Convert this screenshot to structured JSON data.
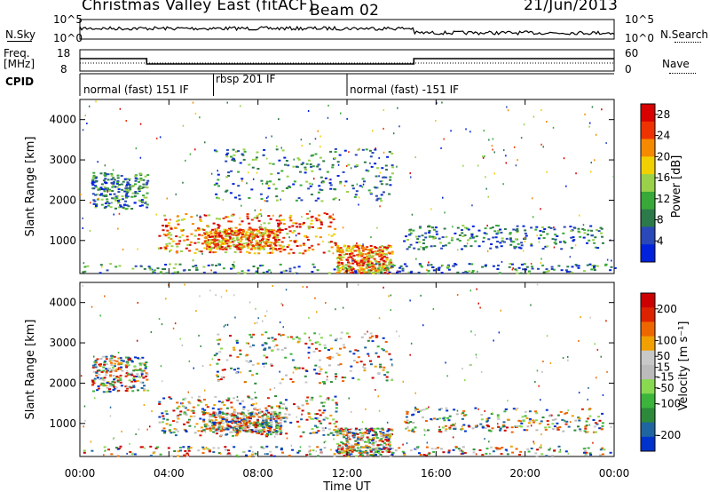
{
  "header": {
    "station": "Christmas Valley East (fitACF)",
    "beam": "Beam 02",
    "date": "21/Jun/2013"
  },
  "top_panels": {
    "nsky_label": "N.Sky",
    "nsky_ticks": [
      "10^5",
      "10^0"
    ],
    "nsearch_label": "N.Search",
    "nsearch_ticks": [
      "10^5",
      "10^0"
    ],
    "freq_label_1": "Freq.",
    "freq_label_2": "[MHz]",
    "freq_ticks": [
      "18",
      "8"
    ],
    "nave_label": "Nave",
    "nave_ticks": [
      "60",
      "0"
    ],
    "cpid_label": "CPID"
  },
  "cpid_modes": [
    {
      "label": "normal (fast) 151 IF",
      "start_hour": 0,
      "end_hour": 6.0
    },
    {
      "label": "rbsp 201 IF",
      "start_hour": 6.0,
      "end_hour": 12.0
    },
    {
      "label": "normal (fast) -151 IF",
      "start_hour": 12.0,
      "end_hour": 24.0
    }
  ],
  "freq_trace": [
    {
      "hour": 0,
      "mhz": 14
    },
    {
      "hour": 3.0,
      "mhz": 14
    },
    {
      "hour": 3.0,
      "mhz": 11
    },
    {
      "hour": 15.0,
      "mhz": 11
    },
    {
      "hour": 15.0,
      "mhz": 14
    },
    {
      "hour": 24,
      "mhz": 14
    }
  ],
  "chart_data": [
    {
      "type": "heatmap",
      "quantity": "Power",
      "ylabel": "Slant Range [km]",
      "ylim": [
        180,
        4500
      ],
      "yticks": [
        1000,
        2000,
        3000,
        4000
      ],
      "colorbar_label": "Power [dB]",
      "colorbar_ticks": [
        4,
        8,
        12,
        16,
        20,
        24,
        28
      ],
      "colorbar_range": [
        0,
        30
      ],
      "colorbar_colors": [
        "#0022dd",
        "#2a48b8",
        "#2c7a4a",
        "#38a838",
        "#99d14a",
        "#f0d000",
        "#f58a00",
        "#ee3300",
        "#d80000"
      ]
    },
    {
      "type": "heatmap",
      "quantity": "Velocity",
      "ylabel": "Slant Range [km]",
      "ylim": [
        180,
        4500
      ],
      "yticks": [
        1000,
        2000,
        3000,
        4000
      ],
      "colorbar_label": "Velocity [m s⁻¹]",
      "colorbar_ticks": [
        200,
        100,
        50,
        15,
        -15,
        -50,
        -100,
        -200
      ],
      "colorbar_range": [
        -250,
        250
      ],
      "colorbar_colors": [
        "#0033cc",
        "#1f66a0",
        "#2c8a3a",
        "#3cb43c",
        "#88d850",
        "#bbbbbb",
        "#c8c8c8",
        "#f0a000",
        "#ee6600",
        "#dd2200",
        "#cc0000"
      ]
    }
  ],
  "x_axis": {
    "label": "Time UT",
    "ticks": [
      "00:00",
      "04:00",
      "08:00",
      "12:00",
      "16:00",
      "20:00",
      "00:00"
    ],
    "range_hours": [
      0,
      24
    ]
  }
}
